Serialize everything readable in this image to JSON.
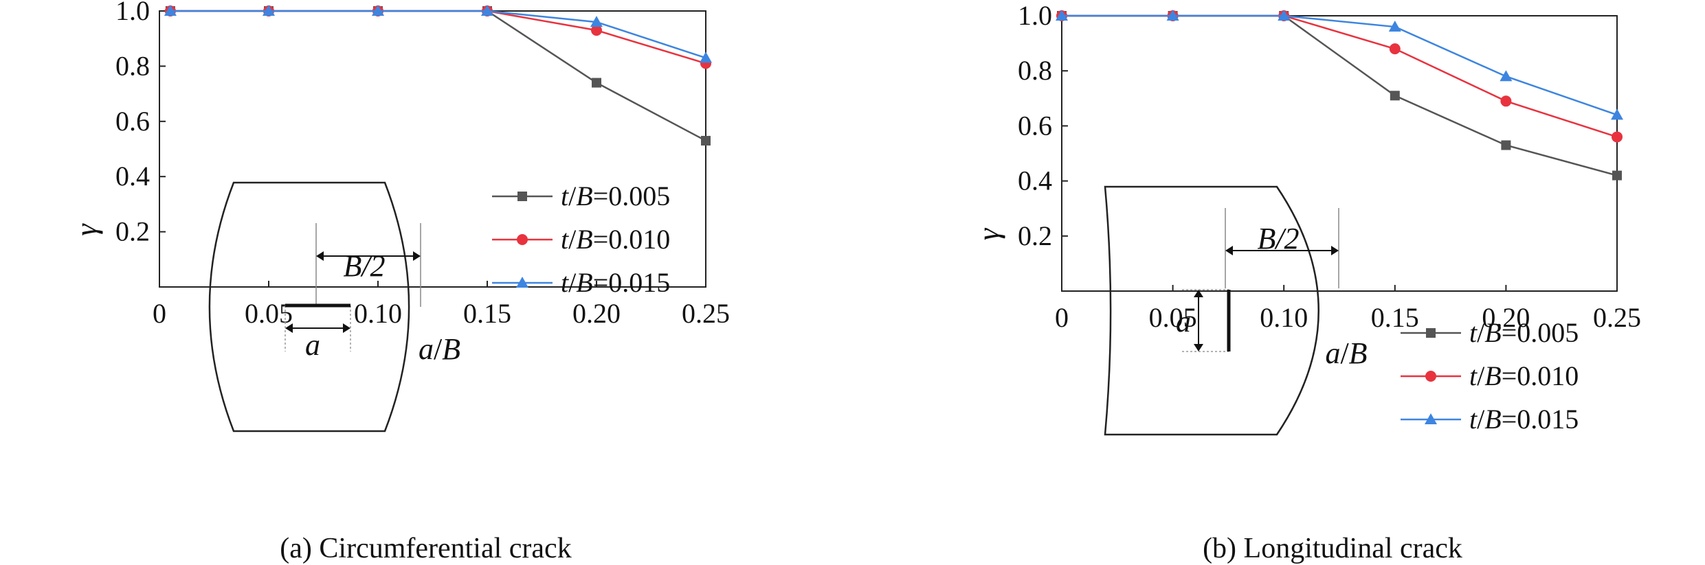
{
  "chart_data": [
    {
      "type": "line",
      "caption": "(a) Circumferential crack",
      "xlabel_parts": [
        {
          "t": "a",
          "i": true
        },
        {
          "t": "/",
          "i": false
        },
        {
          "t": "B",
          "i": true
        }
      ],
      "ylabel": "γ",
      "xlim": [
        0,
        0.25
      ],
      "ylim": [
        0,
        1.0
      ],
      "xticks": [
        0,
        0.05,
        0.1,
        0.15,
        0.2,
        0.25
      ],
      "xtick_labels": [
        "0",
        "0.05",
        "0.10",
        "0.15",
        "0.20",
        "0.25"
      ],
      "yticks": [
        0.2,
        0.4,
        0.6,
        0.8,
        1.0
      ],
      "ytick_labels": [
        "0.2",
        "0.4",
        "0.6",
        "0.8",
        "1.0"
      ],
      "grid": false,
      "legend_position": "lower-right",
      "x": [
        0.005,
        0.05,
        0.1,
        0.15,
        0.2,
        0.25
      ],
      "series": [
        {
          "label_num": "0.005",
          "color": "#555555",
          "marker": "square",
          "values": [
            1.0,
            1.0,
            1.0,
            1.0,
            0.74,
            0.53
          ]
        },
        {
          "label_num": "0.010",
          "color": "#e8333f",
          "marker": "circle",
          "values": [
            1.0,
            1.0,
            1.0,
            1.0,
            0.93,
            0.81
          ]
        },
        {
          "label_num": "0.015",
          "color": "#3d85e0",
          "marker": "triangle",
          "values": [
            1.0,
            1.0,
            1.0,
            1.0,
            0.96,
            0.83
          ]
        }
      ],
      "inset": {
        "kind": "circumferential",
        "width_label": "B/2",
        "crack_label": "a"
      }
    },
    {
      "type": "line",
      "caption": "(b) Longitudinal crack",
      "xlabel_parts": [
        {
          "t": "a",
          "i": true
        },
        {
          "t": "/",
          "i": false
        },
        {
          "t": "B",
          "i": true
        }
      ],
      "ylabel": "γ",
      "xlim": [
        0,
        0.25
      ],
      "ylim": [
        0,
        1.0
      ],
      "xticks": [
        0,
        0.05,
        0.1,
        0.15,
        0.2,
        0.25
      ],
      "xtick_labels": [
        "0",
        "0.05",
        "0.10",
        "0.15",
        "0.20",
        "0.25"
      ],
      "yticks": [
        0.2,
        0.4,
        0.6,
        0.8,
        1.0
      ],
      "ytick_labels": [
        "0.2",
        "0.4",
        "0.6",
        "0.8",
        "1.0"
      ],
      "grid": false,
      "legend_position": "lower-right",
      "x": [
        0.0,
        0.05,
        0.1,
        0.15,
        0.2,
        0.25
      ],
      "series": [
        {
          "label_num": "0.005",
          "color": "#555555",
          "marker": "square",
          "values": [
            1.0,
            1.0,
            1.0,
            0.71,
            0.53,
            0.42
          ]
        },
        {
          "label_num": "0.010",
          "color": "#e8333f",
          "marker": "circle",
          "values": [
            1.0,
            1.0,
            1.0,
            0.88,
            0.69,
            0.56
          ]
        },
        {
          "label_num": "0.015",
          "color": "#3d85e0",
          "marker": "triangle",
          "values": [
            1.0,
            1.0,
            1.0,
            0.96,
            0.78,
            0.64
          ]
        }
      ],
      "inset": {
        "kind": "longitudinal",
        "width_label": "B/2",
        "crack_label": "a"
      }
    }
  ],
  "legend_prefix_parts": [
    {
      "t": "t",
      "i": true
    },
    {
      "t": "/",
      "i": false
    },
    {
      "t": "B",
      "i": true
    },
    {
      "t": "=",
      "i": false
    }
  ]
}
